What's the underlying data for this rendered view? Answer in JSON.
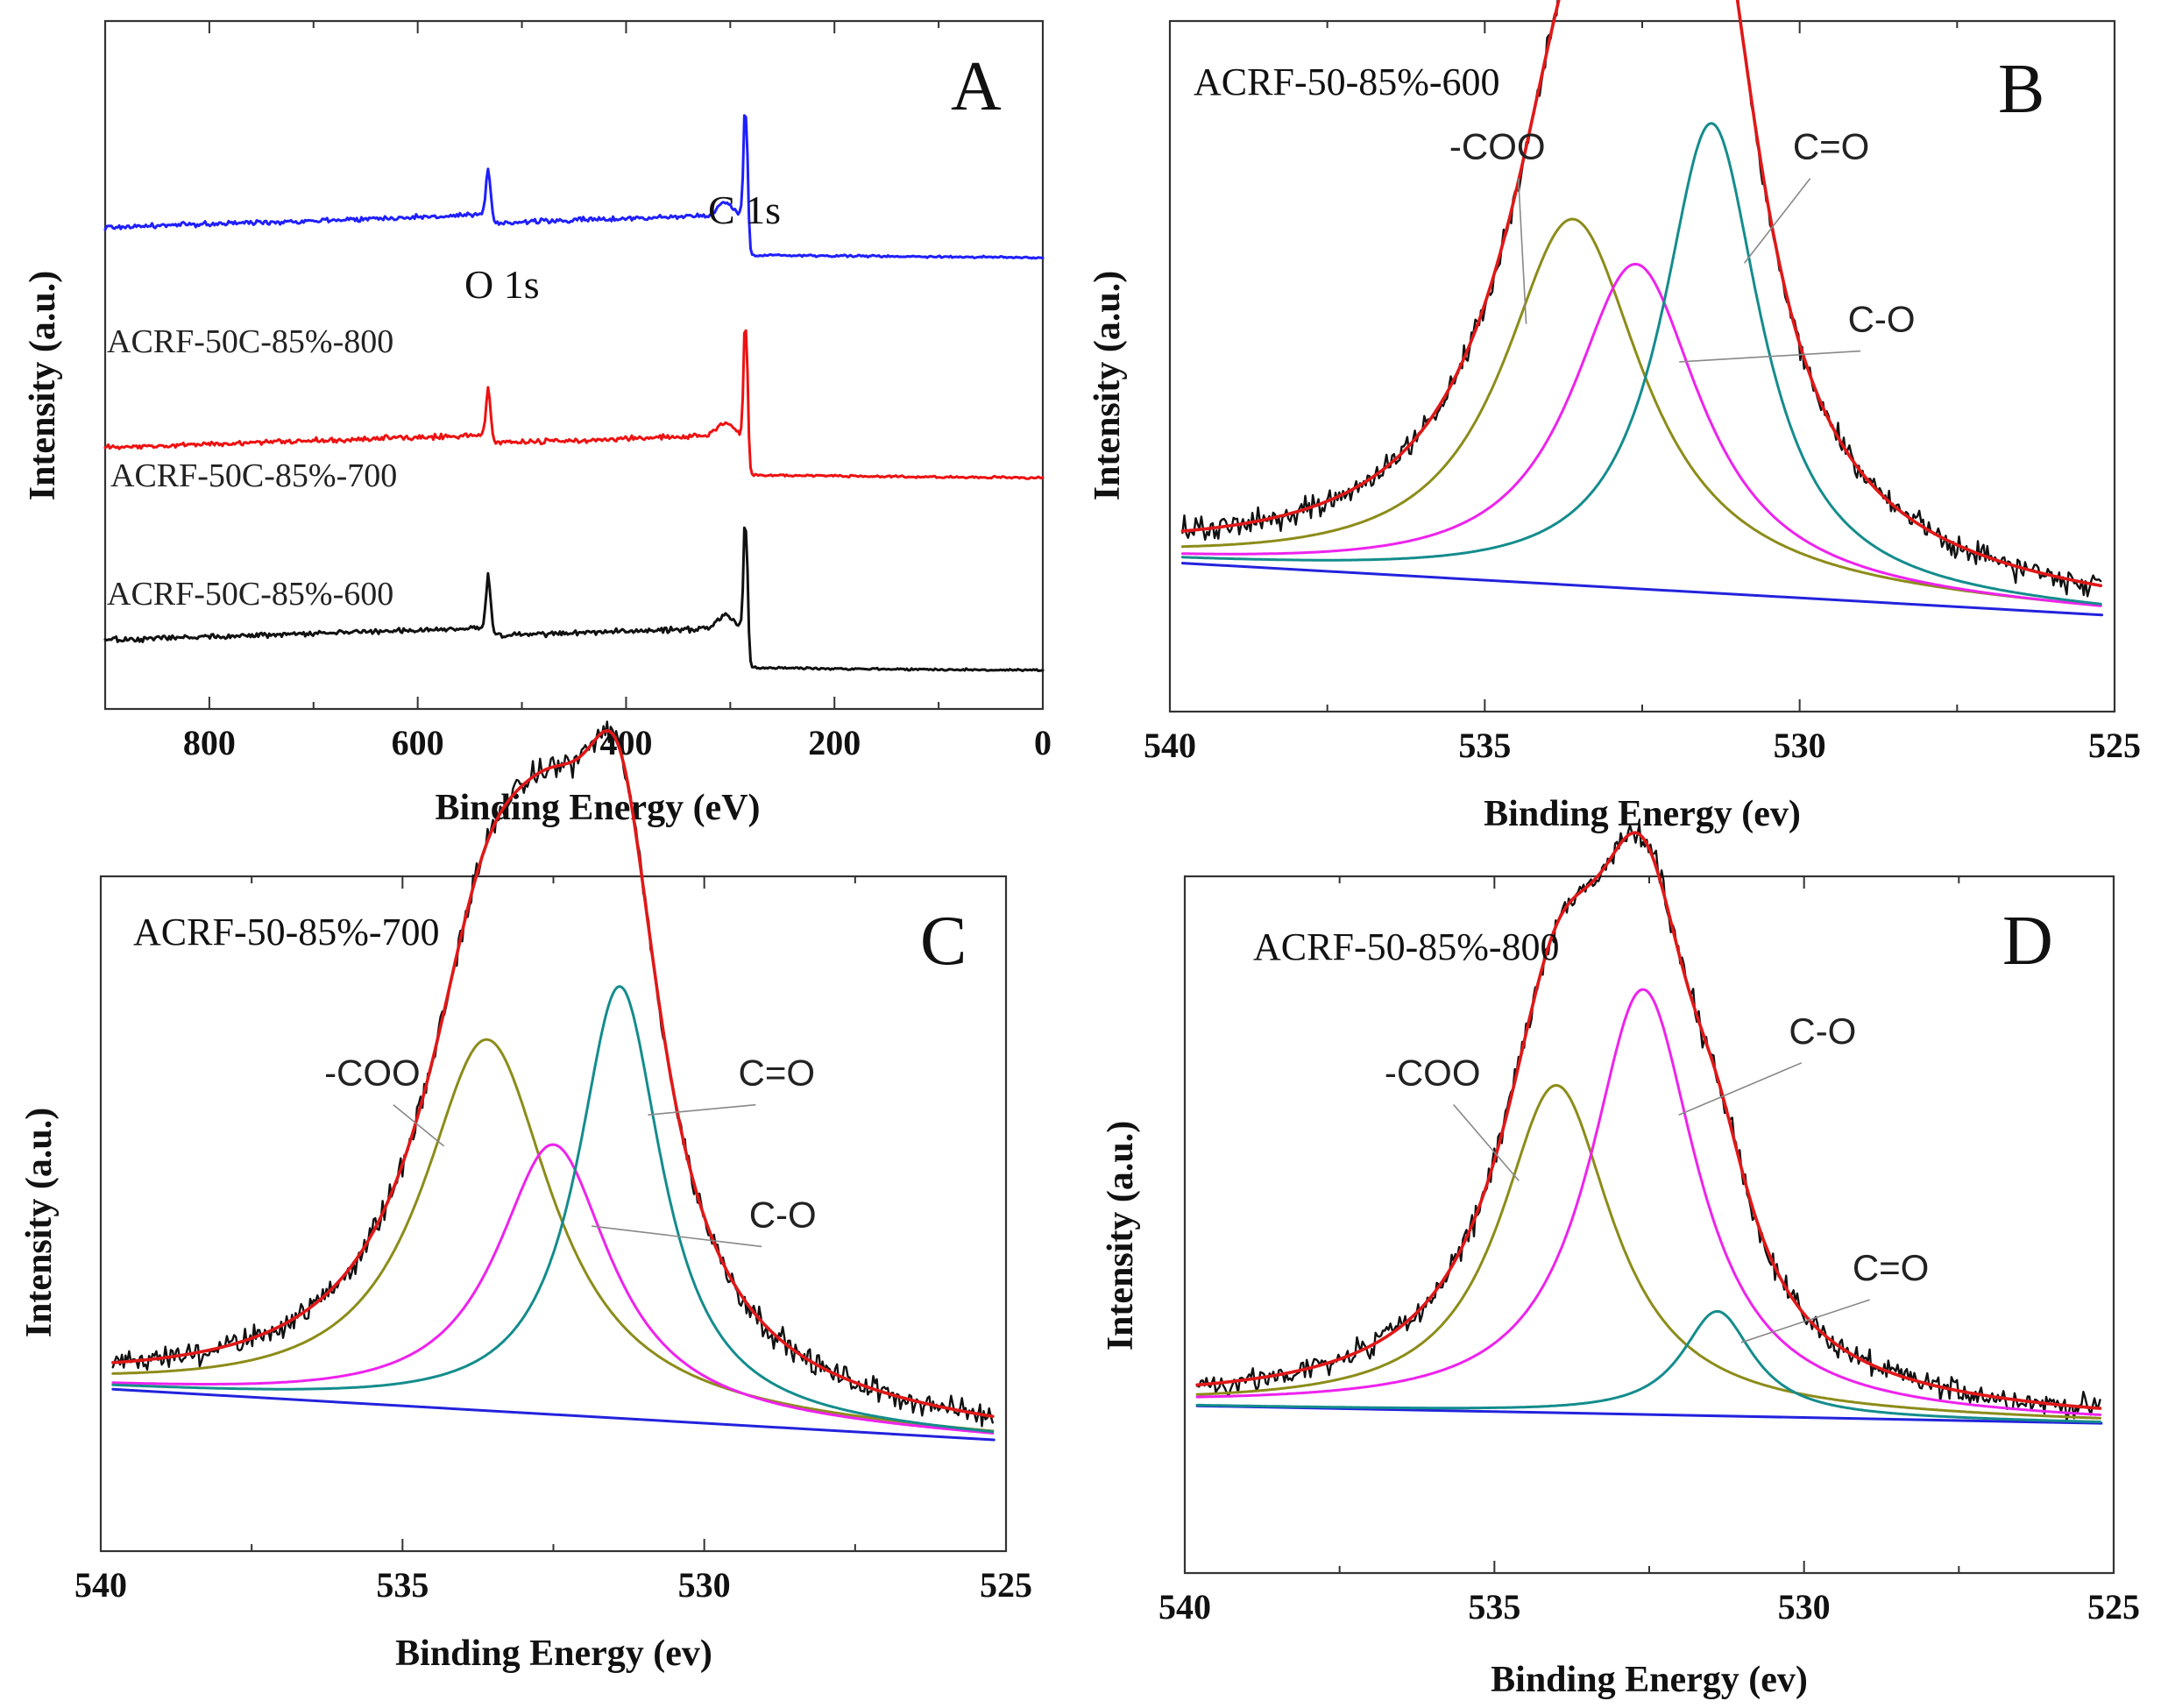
{
  "chart_data": [
    {
      "type": "line",
      "panel": "A",
      "xlabel": "Binding Energy (eV)",
      "ylabel": "Intensity (a.u.)",
      "xlim": [
        900,
        0
      ],
      "xticks": [
        800,
        600,
        400,
        200,
        0
      ],
      "peak_labels": [
        {
          "text": "O 1s",
          "x": 532
        },
        {
          "text": "C 1s",
          "x": 285
        }
      ],
      "series": [
        {
          "name": "ACRF-50C-85%-800",
          "color": "#1f1fff",
          "offset": 0.7,
          "o1s_height": 0.07,
          "c1s_height": 0.2
        },
        {
          "name": "ACRF-50C-85%-700",
          "color": "#ee1111",
          "offset": 0.38,
          "o1s_height": 0.07,
          "c1s_height": 0.21
        },
        {
          "name": "ACRF-50C-85%-600",
          "color": "#111111",
          "offset": 0.1,
          "o1s_height": 0.08,
          "c1s_height": 0.2
        }
      ]
    },
    {
      "type": "line",
      "panel": "B",
      "sample": "ACRF-50-85%-600",
      "xlabel": "Binding Energy (ev)",
      "ylabel": "Intensity (a.u.)",
      "xlim": [
        540,
        525
      ],
      "xticks": [
        540,
        535,
        530,
        525
      ],
      "baseline": {
        "start": 0.215,
        "end": 0.14
      },
      "components": [
        {
          "name": "-COO",
          "center": 533.6,
          "height": 0.53,
          "width": 1.35,
          "color": "#8c8c1a"
        },
        {
          "name": "C-O",
          "center": 532.6,
          "height": 0.47,
          "width": 1.25,
          "color": "#ee22ee"
        },
        {
          "name": "C=O",
          "center": 531.4,
          "height": 0.68,
          "width": 0.95,
          "color": "#148c8c"
        }
      ],
      "label_positions": {
        "-COO": [
          534.8,
          0.8
        ],
        "C=O": [
          529.5,
          0.8
        ],
        "C-O": [
          528.7,
          0.55
        ]
      }
    },
    {
      "type": "line",
      "panel": "C",
      "sample": "ACRF-50-85%-700",
      "xlabel": "Binding Energy (ev)",
      "ylabel": "Intensity (a.u.)",
      "xlim": [
        540,
        525
      ],
      "xticks": [
        540,
        535,
        530,
        525
      ],
      "baseline": {
        "start": 0.24,
        "end": 0.165
      },
      "components": [
        {
          "name": "-COO",
          "center": 533.6,
          "height": 0.55,
          "width": 1.3,
          "color": "#8c8c1a"
        },
        {
          "name": "C-O",
          "center": 532.5,
          "height": 0.4,
          "width": 1.15,
          "color": "#ee22ee"
        },
        {
          "name": "C=O",
          "center": 531.4,
          "height": 0.64,
          "width": 0.85,
          "color": "#148c8c"
        }
      ],
      "label_positions": {
        "-COO": [
          535.5,
          0.69
        ],
        "C=O": [
          528.8,
          0.69
        ],
        "C-O": [
          528.7,
          0.48
        ]
      }
    },
    {
      "type": "line",
      "panel": "D",
      "sample": "ACRF-50-85%-800",
      "xlabel": "Binding Energy (ev)",
      "ylabel": "Intensity (a.u.)",
      "xlim": [
        540,
        525
      ],
      "xticks": [
        540,
        535,
        530,
        525
      ],
      "baseline": {
        "start": 0.24,
        "end": 0.215
      },
      "components": [
        {
          "name": "-COO",
          "center": 534.0,
          "height": 0.47,
          "width": 1.1,
          "color": "#8c8c1a"
        },
        {
          "name": "C-O",
          "center": 532.6,
          "height": 0.61,
          "width": 1.05,
          "color": "#ee22ee"
        },
        {
          "name": "C=O",
          "center": 531.4,
          "height": 0.15,
          "width": 0.7,
          "color": "#148c8c"
        }
      ],
      "label_positions": {
        "-COO": [
          536.0,
          0.7
        ],
        "C-O": [
          529.7,
          0.76
        ],
        "C=O": [
          528.6,
          0.42
        ]
      }
    }
  ]
}
